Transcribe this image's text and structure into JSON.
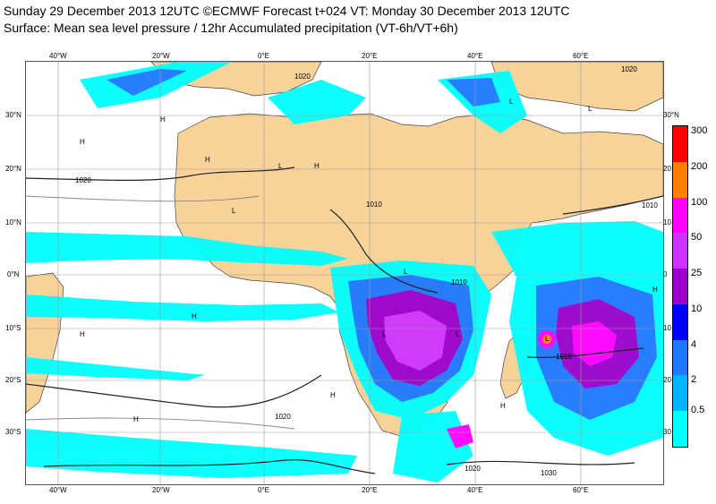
{
  "header": {
    "line1": "Sunday 29 December 2013 12UTC ©ECMWF Forecast t+024 VT: Monday 30 December 2013 12UTC",
    "line2": "Surface: Mean sea level pressure / 12hr Accumulated precipitation (VT-6h/VT+6h)"
  },
  "map": {
    "lon_labels": [
      "40°W",
      "20°W",
      "0°E",
      "20°E",
      "40°E",
      "60°E"
    ],
    "lat_labels_left": [
      "30°N",
      "20°N",
      "10°N",
      "0°N",
      "10°S",
      "20°S",
      "30°S"
    ],
    "lat_labels_right": [
      "30°N",
      "20",
      "10",
      "0",
      "10",
      "20",
      "30"
    ],
    "isobar_labels": [
      "1020",
      "1020",
      "1010",
      "1010",
      "1010",
      "1010",
      "1020",
      "1020",
      "1030",
      "1020"
    ],
    "pressure_centers": [
      "H",
      "H",
      "H",
      "H",
      "H",
      "L",
      "L",
      "L",
      "L",
      "L",
      "L",
      "H",
      "H",
      "H",
      "H",
      "H",
      "L",
      "L"
    ]
  },
  "legend": {
    "labels": [
      "300",
      "200",
      "100",
      "50",
      "25",
      "10",
      "4",
      "2",
      "0.5"
    ],
    "colors": [
      "#ff0000",
      "#ff7f00",
      "#ff00ff",
      "#cc33ff",
      "#9900cc",
      "#0000ff",
      "#1e78ff",
      "#00b4ff",
      "#00ffff"
    ]
  },
  "colors": {
    "land": "#f7d39a",
    "sea": "#ffffff",
    "precip_light": "#00ffff",
    "precip_mid": "#1e78ff",
    "precip_heavy": "#9900cc"
  }
}
